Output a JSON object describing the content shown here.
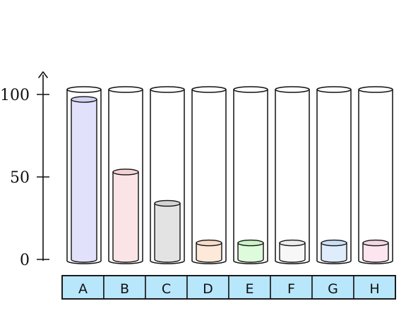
{
  "chart_data": {
    "type": "bar",
    "style": "cylinders",
    "categories": [
      "A",
      "B",
      "C",
      "D",
      "E",
      "F",
      "G",
      "H"
    ],
    "values": [
      97,
      53,
      34,
      10,
      10,
      10,
      10,
      10
    ],
    "ylim": [
      0,
      100
    ],
    "yticks": [
      0,
      50,
      100
    ],
    "ytick_labels": [
      "0",
      "50",
      "100"
    ],
    "title": "",
    "xlabel": "",
    "ylabel": "",
    "grid": false,
    "colors": {
      "fills": [
        "#e1e1fb",
        "#fbe4e6",
        "#e3e3e3",
        "#fde9da",
        "#defcdc",
        "#f7f7f8",
        "#deecfb",
        "#fce5ef"
      ],
      "tops": [
        "#d3d3f4",
        "#f4d2d4",
        "#d4d4d4",
        "#f7dcc7",
        "#cbf3c6",
        "#ececee",
        "#cadff4",
        "#f3d5e2"
      ],
      "label_band": "#b8e6fb",
      "outline": "#111111"
    }
  }
}
